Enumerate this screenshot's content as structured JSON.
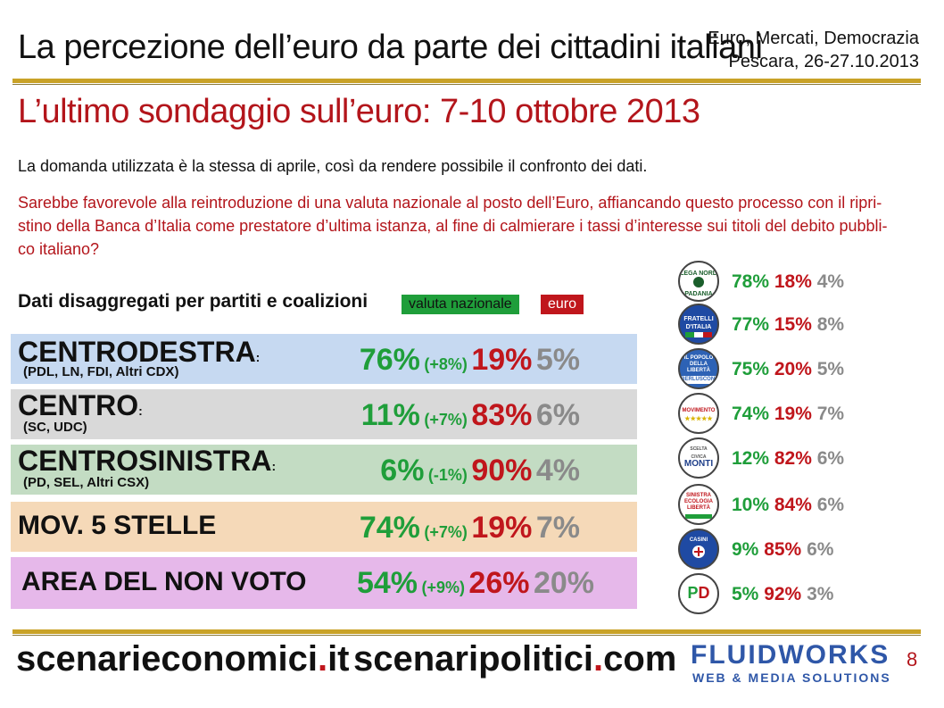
{
  "header": {
    "title": "La percezione dell’euro da parte dei cittadini italiani",
    "event_line1": "Euro, Mercati, Democrazia",
    "event_line2": "Pescara, 26-27.10.2013"
  },
  "slide": {
    "subtitle": "L’ultimo sondaggio sull’euro: 7-10 ottobre 2013",
    "intro": "La domanda utilizzata è la stessa di aprile, così da rendere possibile il confronto dei dati.",
    "question_line1": "Sarebbe favorevole alla reintroduzione di una valuta nazionale al posto dell’Euro, affiancando questo processo con il ripri-",
    "question_line2": "stino della Banca d’Italia come prestatore d’ultima istanza, al fine di calmierare i tassi d’interesse sui titoli del debito pubbli-",
    "question_line3": "co italiano?",
    "disaggregated_title": "Dati disaggregati per partiti e coalizioni",
    "legend_national": "valuta nazionale",
    "legend_euro": "euro"
  },
  "colors": {
    "national": "#1f9e3a",
    "euro": "#c0161c",
    "undecided": "#8a8a8a",
    "title_red": "#b3151b",
    "rule_gold": "#c9a227"
  },
  "coalitions": [
    {
      "name": "CENTRODESTRA",
      "colon": ":",
      "sub": "(PDL, LN, FDI, Altri CDX)",
      "national": "76%",
      "delta": "(+8%)",
      "euro": "19%",
      "other": "5%",
      "bg": "#c6d9f1"
    },
    {
      "name": "CENTRO",
      "colon": ":",
      "sub": "(SC, UDC)",
      "national": "11%",
      "delta": "(+7%)",
      "euro": "83%",
      "other": "6%",
      "bg": "#d9d9d9"
    },
    {
      "name": "CENTROSINISTRA",
      "colon": ":",
      "sub": "(PD, SEL, Altri CSX)",
      "national": "6%",
      "delta": "(-1%)",
      "euro": "90%",
      "other": "4%",
      "bg": "#c3dcc3"
    },
    {
      "name": "MOV. 5 STELLE",
      "colon": "",
      "sub": "",
      "national": "74%",
      "delta": "(+7%)",
      "euro": "19%",
      "other": "7%",
      "bg": "#f5d9b8"
    },
    {
      "name": "AREA DEL NON VOTO",
      "colon": "",
      "sub": "",
      "national": "54%",
      "delta": "(+9%)",
      "euro": "26%",
      "other": "20%",
      "bg": "#e6b8ea"
    }
  ],
  "parties": [
    {
      "logo": "lega-nord-logo",
      "logo_text": "LEGA NORD PADANIA",
      "national": "78%",
      "euro": "18%",
      "other": "4%"
    },
    {
      "logo": "fratelli-ditalia-logo",
      "logo_text": "FRATELLI D'ITALIA",
      "national": "77%",
      "euro": "15%",
      "other": "8%"
    },
    {
      "logo": "pdl-berlusconi-logo",
      "logo_text": "IL POPOLO DELLA LIBERTÀ BERLUSCONI",
      "national": "75%",
      "euro": "20%",
      "other": "5%"
    },
    {
      "logo": "movimento-5-stelle-logo",
      "logo_text": "MOVIMENTO ★★★★★",
      "national": "74%",
      "euro": "19%",
      "other": "7%"
    },
    {
      "logo": "scelta-civica-monti-logo",
      "logo_text": "SCELTA CIVICA MONTI",
      "national": "12%",
      "euro": "82%",
      "other": "6%"
    },
    {
      "logo": "sel-logo",
      "logo_text": "SINISTRA ECOLOGIA LIBERTÀ",
      "national": "10%",
      "euro": "84%",
      "other": "6%"
    },
    {
      "logo": "udc-casini-logo",
      "logo_text": "CASINI UDC",
      "national": "9%",
      "euro": "85%",
      "other": "6%"
    },
    {
      "logo": "partito-democratico-logo",
      "logo_text": "PD",
      "national": "5%",
      "euro": "92%",
      "other": "3%"
    }
  ],
  "footer": {
    "site1_a": "scenarieconomici",
    "site1_dot": ".",
    "site1_b": "it",
    "site2_a": "scenaripolitici",
    "site2_dot": ".",
    "site2_b": "com",
    "brand": "FLUIDWORKS",
    "brand_tagline": "WEB & MEDIA SOLUTIONS",
    "page_number": "8"
  }
}
